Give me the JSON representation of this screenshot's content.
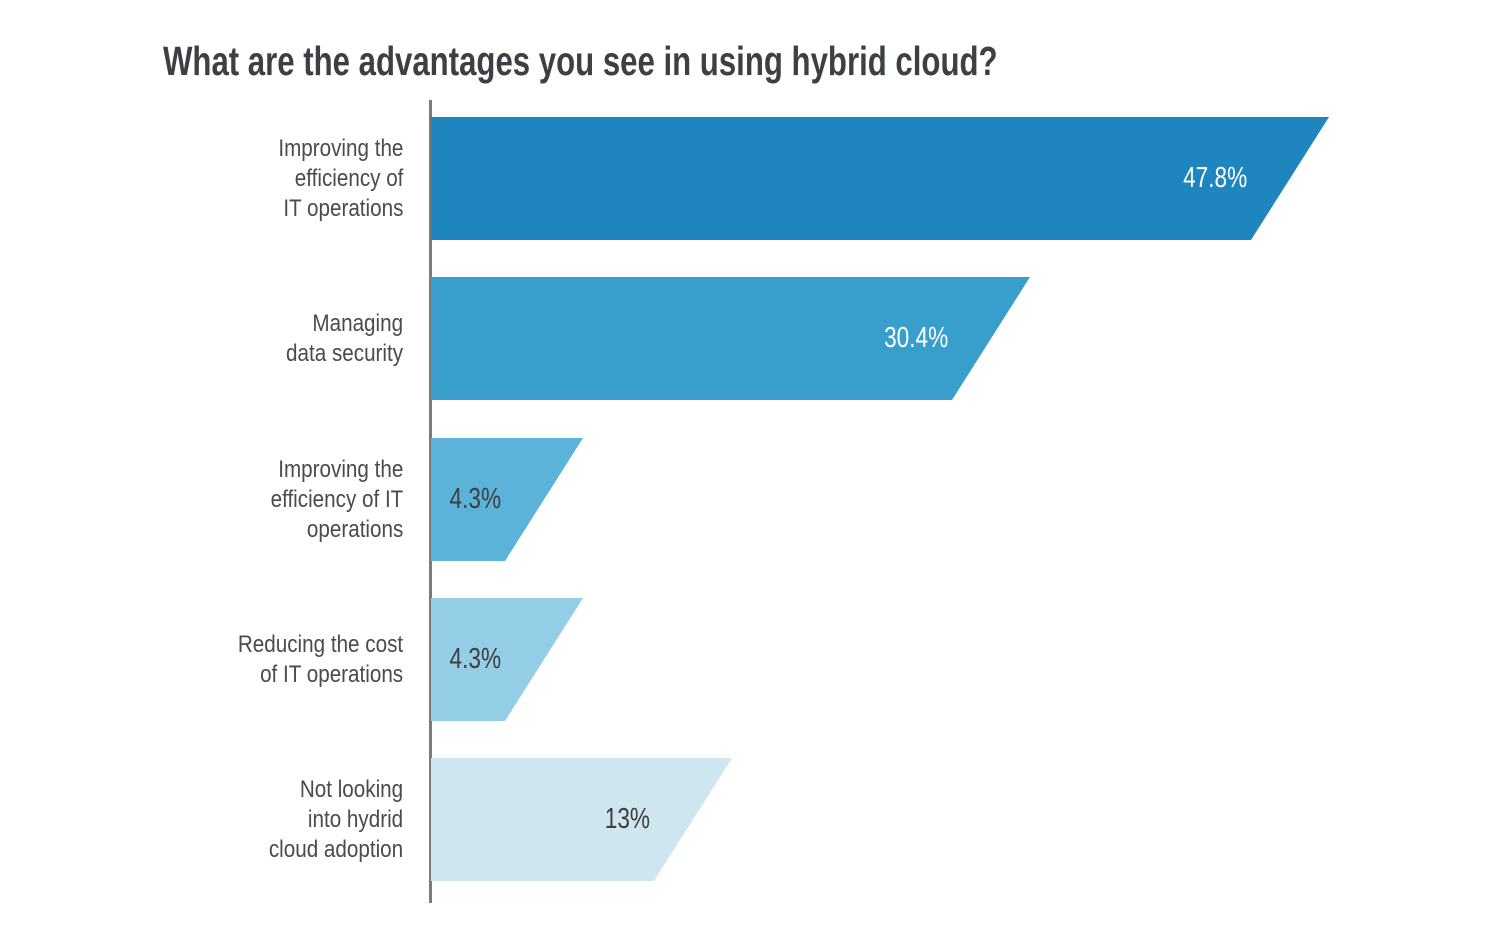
{
  "chart_data": {
    "type": "bar",
    "orientation": "horizontal",
    "bar_shape": "right-trapezoid (slanted right edge, top longer than bottom)",
    "title": "What are the advantages you see in using hybrid cloud?",
    "categories": [
      [
        "Improving the",
        "efficiency of",
        "IT operations"
      ],
      [
        "Managing",
        "data security"
      ],
      [
        "Improving the",
        "efficiency of IT",
        "operations"
      ],
      [
        "Reducing the cost",
        "of IT operations"
      ],
      [
        "Not looking",
        "into hydrid",
        "cloud adoption"
      ]
    ],
    "values": [
      47.8,
      30.4,
      4.3,
      4.3,
      13
    ],
    "value_labels": [
      "47.8%",
      "30.4%",
      "4.3%",
      "4.3%",
      "13%"
    ],
    "bar_colors": [
      "#1f85bf",
      "#389ecc",
      "#5bb3d9",
      "#93cde6",
      "#cfe6f1"
    ],
    "value_label_colors": [
      "#ffffff",
      "#ffffff",
      "#3f3f3f",
      "#3f3f3f",
      "#3f3f3f"
    ],
    "value_label_position": "right end of bar, inside",
    "xlim": [
      0,
      52
    ],
    "grid": false,
    "legend": false,
    "styles": {
      "title_color": "#3c4044",
      "category_label_color": "#4b4b4b",
      "axis_color": "#7b7b7b",
      "background": "#ffffff"
    }
  }
}
